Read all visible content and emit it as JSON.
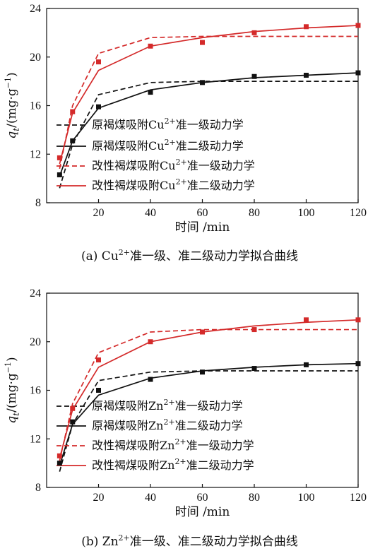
{
  "colors": {
    "black": "#111111",
    "red": "#d42a2a"
  },
  "chart_data": [
    {
      "type": "line",
      "ylabel_var": "q",
      "ylabel_sub": "t",
      "ylabel_unit": "/(mg·g",
      "ylabel_sup": "−1",
      "ylabel_close": ")",
      "xlabel": "时间 /min",
      "xlim": [
        0,
        120
      ],
      "ylim": [
        8,
        24
      ],
      "xticks": [
        "20",
        "40",
        "60",
        "80",
        "100",
        "120"
      ],
      "yticks": [
        "8",
        "12",
        "16",
        "20",
        "24"
      ],
      "caption": {
        "prefix": "(a)  Cu",
        "sup": "2+",
        "suffix": "准一级、准二级动力学拟合曲线"
      },
      "series": [
        {
          "name_prefix": "原褐煤吸附Cu",
          "name_sup": "2+",
          "name_suffix": "准一级动力学",
          "color": "black",
          "dash": true,
          "marker": false,
          "x": [
            5,
            10,
            20,
            40,
            60,
            80,
            100,
            120
          ],
          "y": [
            9.2,
            12.8,
            16.9,
            17.9,
            18.0,
            18.0,
            18.0,
            18.0
          ]
        },
        {
          "name_prefix": "原褐煤吸附Cu",
          "name_sup": "2+",
          "name_suffix": "准二级动力学",
          "color": "black",
          "dash": false,
          "marker": false,
          "x": [
            5,
            10,
            20,
            40,
            60,
            80,
            100,
            120
          ],
          "y": [
            10.2,
            13.1,
            15.8,
            17.3,
            17.9,
            18.3,
            18.5,
            18.7
          ]
        },
        {
          "name_prefix": "改性褐煤吸附Cu",
          "name_sup": "2+",
          "name_suffix": "准一级动力学",
          "color": "red",
          "dash": true,
          "marker": false,
          "x": [
            5,
            10,
            20,
            40,
            60,
            80,
            100,
            120
          ],
          "y": [
            10.8,
            16.0,
            20.3,
            21.6,
            21.7,
            21.7,
            21.7,
            21.7
          ]
        },
        {
          "name_prefix": "改性褐煤吸附Cu",
          "name_sup": "2+",
          "name_suffix": "准二级动力学",
          "color": "red",
          "dash": false,
          "marker": false,
          "x": [
            5,
            10,
            20,
            40,
            60,
            80,
            100,
            120
          ],
          "y": [
            11.2,
            15.4,
            18.9,
            20.9,
            21.6,
            22.1,
            22.4,
            22.6
          ]
        },
        {
          "name": "",
          "color": "black",
          "dash": false,
          "marker": true,
          "line": false,
          "x": [
            5,
            10,
            20,
            40,
            60,
            80,
            100,
            120
          ],
          "y": [
            10.3,
            13.1,
            15.9,
            17.1,
            17.9,
            18.4,
            18.5,
            18.7
          ]
        },
        {
          "name": "",
          "color": "red",
          "dash": false,
          "marker": true,
          "line": false,
          "x": [
            5,
            10,
            20,
            40,
            60,
            80,
            100,
            120
          ],
          "y": [
            11.7,
            15.5,
            19.6,
            20.9,
            21.2,
            22.0,
            22.5,
            22.6
          ]
        }
      ]
    },
    {
      "type": "line",
      "ylabel_var": "q",
      "ylabel_sub": "t",
      "ylabel_unit": "/(mg·g",
      "ylabel_sup": "−1",
      "ylabel_close": ")",
      "xlabel": "时间 /min",
      "xlim": [
        0,
        120
      ],
      "ylim": [
        8,
        24
      ],
      "xticks": [
        "20",
        "40",
        "60",
        "80",
        "100",
        "120"
      ],
      "yticks": [
        "8",
        "12",
        "16",
        "20",
        "24"
      ],
      "caption": {
        "prefix": "(b)  Zn",
        "sup": "2+",
        "suffix": "准一级、准二级动力学拟合曲线"
      },
      "series": [
        {
          "name_prefix": "原褐煤吸附Zn",
          "name_sup": "2+",
          "name_suffix": "准一级动力学",
          "color": "black",
          "dash": true,
          "marker": false,
          "x": [
            5,
            10,
            20,
            40,
            60,
            80,
            100,
            120
          ],
          "y": [
            9.3,
            13.2,
            16.8,
            17.5,
            17.6,
            17.6,
            17.6,
            17.6
          ]
        },
        {
          "name_prefix": "原褐煤吸附Zn",
          "name_sup": "2+",
          "name_suffix": "准二级动力学",
          "color": "black",
          "dash": false,
          "marker": false,
          "x": [
            5,
            10,
            20,
            40,
            60,
            80,
            100,
            120
          ],
          "y": [
            9.8,
            13.2,
            15.6,
            17.0,
            17.6,
            17.9,
            18.1,
            18.2
          ]
        },
        {
          "name_prefix": "改性褐煤吸附Zn",
          "name_sup": "2+",
          "name_suffix": "准一级动力学",
          "color": "red",
          "dash": true,
          "marker": false,
          "x": [
            5,
            10,
            20,
            40,
            60,
            80,
            100,
            120
          ],
          "y": [
            10.2,
            14.9,
            19.1,
            20.8,
            21.0,
            21.0,
            21.0,
            21.0
          ]
        },
        {
          "name_prefix": "改性褐煤吸附Zn",
          "name_sup": "2+",
          "name_suffix": "准二级动力学",
          "color": "red",
          "dash": false,
          "marker": false,
          "x": [
            5,
            10,
            20,
            40,
            60,
            80,
            100,
            120
          ],
          "y": [
            10.4,
            14.4,
            17.9,
            20.0,
            20.8,
            21.3,
            21.6,
            21.8
          ]
        },
        {
          "name": "",
          "color": "black",
          "dash": false,
          "marker": true,
          "line": false,
          "x": [
            5,
            10,
            20,
            40,
            60,
            80,
            100,
            120
          ],
          "y": [
            10.0,
            13.4,
            16.0,
            16.9,
            17.5,
            17.8,
            18.1,
            18.2
          ]
        },
        {
          "name": "",
          "color": "red",
          "dash": false,
          "marker": true,
          "line": false,
          "x": [
            5,
            10,
            20,
            40,
            60,
            80,
            100,
            120
          ],
          "y": [
            10.6,
            14.5,
            18.5,
            20.0,
            20.8,
            21.0,
            21.8,
            21.8
          ]
        }
      ]
    }
  ]
}
